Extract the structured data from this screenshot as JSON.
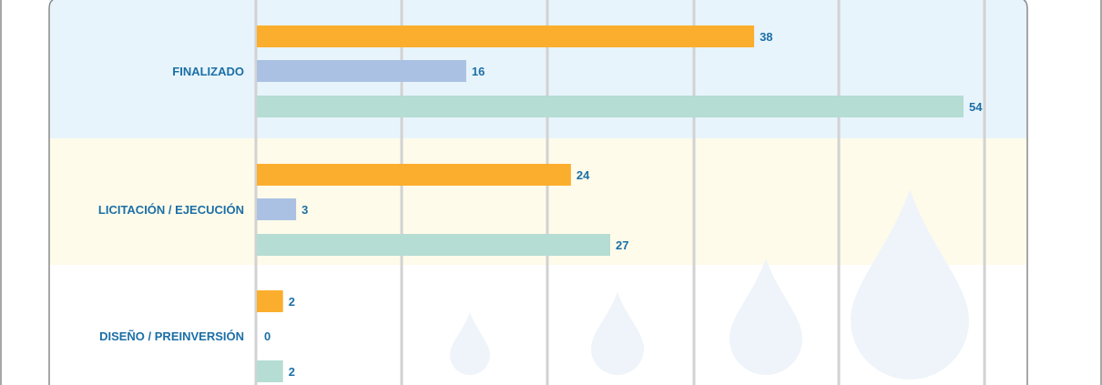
{
  "chart_data": {
    "type": "bar",
    "orientation": "horizontal",
    "categories": [
      "FINALIZADO",
      "LICITACIÓN / EJECUCIÓN",
      "DISEÑO / PREINVERSIÓN"
    ],
    "series": [
      {
        "values": [
          38,
          24,
          2
        ]
      },
      {
        "values": [
          16,
          3,
          0
        ]
      },
      {
        "values": [
          54,
          27,
          2
        ]
      }
    ],
    "xlim": [
      0,
      54
    ],
    "grid": true,
    "legend": "none",
    "title": "",
    "xlabel": "",
    "ylabel": ""
  },
  "colors": {
    "series": [
      "#fbae2e",
      "#abc1e3",
      "#b5ddd3"
    ],
    "label_text": "#1b6fa6",
    "band_backgrounds": [
      "#e8f4fc",
      "#fffbea",
      "#ffffff"
    ],
    "gridline": "#d2d2d2",
    "frame": "#8a8a8a",
    "drop_decoration": "#eef4f9"
  },
  "icons": {
    "decoration": "water-drop-icon"
  }
}
